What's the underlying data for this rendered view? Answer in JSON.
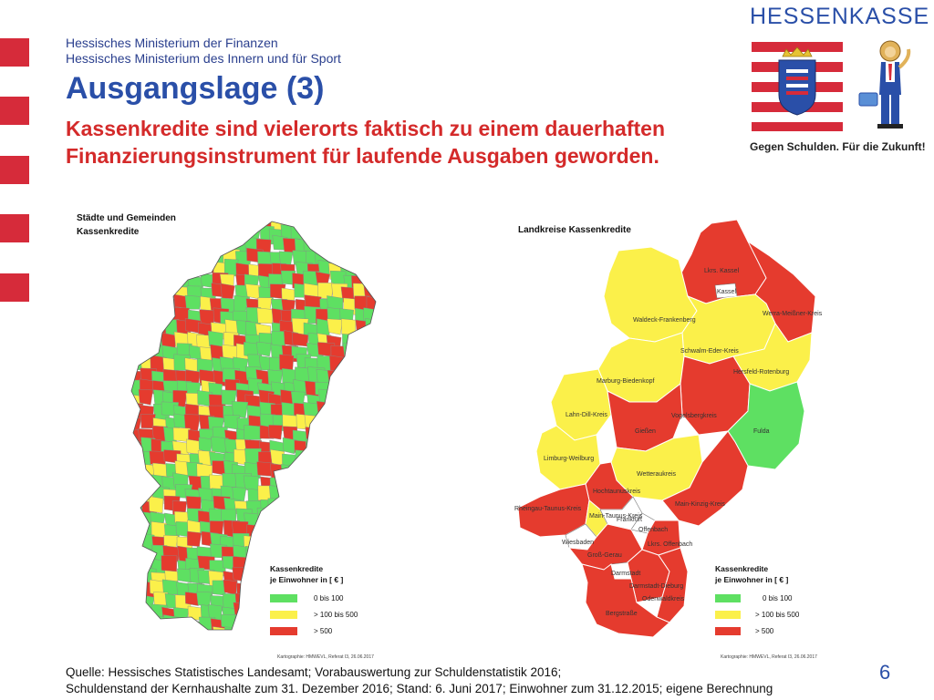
{
  "header": {
    "ministry_finance": "Hessisches Ministerium der Finanzen",
    "ministry_interior": "Hessisches Ministerium des Innern und für Sport",
    "title": "Ausgangslage (3)",
    "subtitle": "Kassenkredite sind vielerorts faktisch zu einem dauerhaften Finanzierungsinstrument für laufende Ausgaben geworden."
  },
  "logo": {
    "name": "HESSENKASSE",
    "tagline": "Gegen Schulden. Für die Zukunft!"
  },
  "colors": {
    "green": "#5ee062",
    "yellow": "#fbf04a",
    "red": "#e53b2e",
    "white": "#ffffff",
    "accent_blue": "#2a4fa8",
    "accent_red": "#d42a2a"
  },
  "map_left": {
    "title_line1": "Städte und Gemeinden",
    "title_line2": "Kassenkredite",
    "credit": "Kartographie: HMWEVL, Referat I3, 26.06.2017"
  },
  "map_right": {
    "title": "Landkreise Kassenkredite",
    "credit": "Kartographie: HMWEVL, Referat I3, 26.06.2017",
    "districts": [
      {
        "name": "Lkrs. Kassel",
        "category": "red"
      },
      {
        "name": "Kassel",
        "category": "white"
      },
      {
        "name": "Waldeck-Frankenberg",
        "category": "yellow"
      },
      {
        "name": "Werra-Meißner-Kreis",
        "category": "red"
      },
      {
        "name": "Schwalm-Eder-Kreis",
        "category": "yellow"
      },
      {
        "name": "Hersfeld-Rotenburg",
        "category": "yellow"
      },
      {
        "name": "Marburg-Biedenkopf",
        "category": "yellow"
      },
      {
        "name": "Lahn-Dill-Kreis",
        "category": "yellow"
      },
      {
        "name": "Vogelsbergkreis",
        "category": "red"
      },
      {
        "name": "Gießen",
        "category": "red"
      },
      {
        "name": "Fulda",
        "category": "green"
      },
      {
        "name": "Limburg-Weilburg",
        "category": "yellow"
      },
      {
        "name": "Wetteraukreis",
        "category": "yellow"
      },
      {
        "name": "Hochtaunuskreis",
        "category": "red"
      },
      {
        "name": "Rheingau-Taunus-Kreis",
        "category": "red"
      },
      {
        "name": "Main-Taunus-Kreis",
        "category": "yellow"
      },
      {
        "name": "Frankfurt",
        "category": "white"
      },
      {
        "name": "Wiesbaden",
        "category": "white"
      },
      {
        "name": "Offenbach",
        "category": "white"
      },
      {
        "name": "Main-Kinzig-Kreis",
        "category": "red"
      },
      {
        "name": "Lkrs. Offenbach",
        "category": "red"
      },
      {
        "name": "Groß-Gerau",
        "category": "red"
      },
      {
        "name": "Darmstadt",
        "category": "white"
      },
      {
        "name": "Darmstadt-Dieburg",
        "category": "red"
      },
      {
        "name": "Odenwaldkreis",
        "category": "red"
      },
      {
        "name": "Bergstraße",
        "category": "red"
      }
    ]
  },
  "legend": {
    "title_line1": "Kassenkredite",
    "title_line2": "je Einwohner  in [ € ]",
    "items": [
      {
        "label": "0 bis 100",
        "color": "#5ee062"
      },
      {
        "label": "> 100 bis 500",
        "color": "#fbf04a"
      },
      {
        "label": "> 500",
        "color": "#e53b2e"
      }
    ]
  },
  "footer": {
    "source_line1": "Quelle: Hessisches Statistisches Landesamt; Vorabauswertung zur Schuldenstatistik 2016;",
    "source_line2": "Schuldenstand der Kernhaushalte zum 31. Dezember 2016; Stand: 6. Juni 2017; Einwohner zum 31.12.2015; eigene Berechnung",
    "page_number": "6"
  }
}
